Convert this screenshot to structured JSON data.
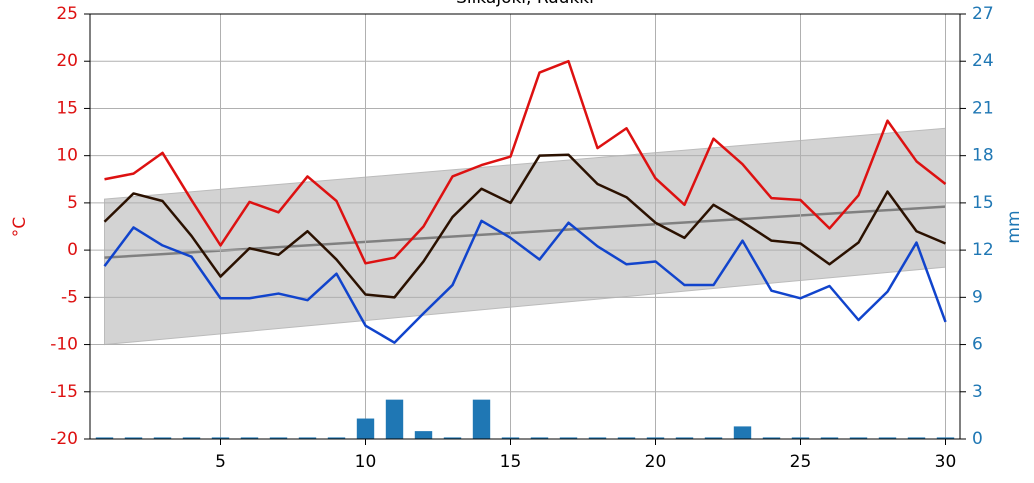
{
  "chart_data": {
    "type": "line",
    "title": "Siikajoki, Ruukki",
    "ylabel": "°C",
    "y2label": "mm",
    "x": [
      1,
      2,
      3,
      4,
      5,
      6,
      7,
      8,
      9,
      10,
      11,
      12,
      13,
      14,
      15,
      16,
      17,
      18,
      19,
      20,
      21,
      22,
      23,
      24,
      25,
      26,
      27,
      28,
      29,
      30
    ],
    "xlim": [
      0.5,
      30.5
    ],
    "xticks": [
      5,
      10,
      15,
      20,
      25,
      30
    ],
    "ylim": [
      -20,
      25
    ],
    "yticks": [
      -20,
      -15,
      -10,
      -5,
      0,
      5,
      10,
      15,
      20,
      25
    ],
    "y2lim": [
      0,
      27
    ],
    "y2ticks": [
      0,
      3,
      6,
      9,
      12,
      15,
      18,
      21,
      24,
      27
    ],
    "grid": true,
    "normal": {
      "x": [
        1,
        30
      ],
      "lower": [
        -10,
        -1.8
      ],
      "upper": [
        5.4,
        12.9
      ],
      "mean": [
        -0.8,
        4.6
      ],
      "band_color": "#d3d3d3",
      "mean_color": "#808080"
    },
    "series": [
      {
        "type": "bar",
        "axis": "y2",
        "color": "#1f77b4",
        "values": [
          0.1,
          0.1,
          0.1,
          0.1,
          0.1,
          0.1,
          0.1,
          0.1,
          0.1,
          1.3,
          2.5,
          0.5,
          0.1,
          2.5,
          0.1,
          0.1,
          0.1,
          0.1,
          0.1,
          0.1,
          0.1,
          0.1,
          0.8,
          0.1,
          0.1,
          0.1,
          0.1,
          0.1,
          0.1,
          0.1
        ]
      },
      {
        "type": "line",
        "color": "#dd1111",
        "values": [
          7.5,
          8.1,
          10.3,
          5.3,
          0.5,
          5.1,
          4.0,
          7.8,
          5.2,
          -1.4,
          -0.8,
          2.5,
          7.8,
          9.0,
          9.9,
          18.8,
          20.0,
          10.8,
          12.9,
          7.6,
          4.8,
          11.8,
          9.1,
          5.5,
          5.3,
          2.3,
          5.8,
          13.7,
          9.4,
          7.0
        ]
      },
      {
        "type": "line",
        "color": "#2b1100",
        "values": [
          3.0,
          6.0,
          5.2,
          1.5,
          -2.8,
          0.2,
          -0.5,
          2.0,
          -1.0,
          -4.7,
          -5.0,
          -1.2,
          3.5,
          6.5,
          5.0,
          10.0,
          10.1,
          7.0,
          5.6,
          2.9,
          1.3,
          4.8,
          3.0,
          1.0,
          0.7,
          -1.5,
          0.8,
          6.2,
          2.0,
          0.7
        ]
      },
      {
        "type": "line",
        "color": "#1144cc",
        "values": [
          -1.7,
          2.4,
          0.5,
          -0.7,
          -5.1,
          -5.1,
          -4.6,
          -5.3,
          -2.5,
          -8.0,
          -9.8,
          -6.7,
          -3.7,
          3.1,
          1.3,
          -1.0,
          2.9,
          0.4,
          -1.5,
          -1.2,
          -3.7,
          -3.7,
          1.0,
          -4.3,
          -5.1,
          -3.8,
          -7.4,
          -4.4,
          0.8,
          -7.6
        ]
      }
    ]
  }
}
